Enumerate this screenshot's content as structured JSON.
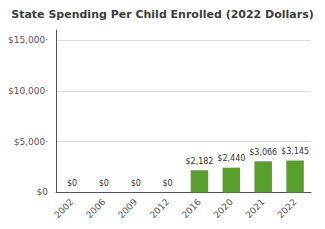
{
  "chart_data": {
    "type": "bar",
    "title": "State Spending Per Child Enrolled (2022 Dollars)",
    "categories": [
      "2002",
      "2006",
      "2009",
      "2012",
      "2016",
      "2020",
      "2021",
      "2022"
    ],
    "values": [
      0,
      0,
      0,
      0,
      2182,
      2440,
      3066,
      3145
    ],
    "value_labels": [
      "$0",
      "$0",
      "$0",
      "$0",
      "$2,182",
      "$2,440",
      "$3,066",
      "$3,145"
    ],
    "data_labels": true,
    "color": "#5a9e2f",
    "ylim": [
      0,
      16000
    ],
    "yticks": [
      {
        "value": 0,
        "label": "$0"
      },
      {
        "value": 5000,
        "label": "$5,000·"
      },
      {
        "value": 10000,
        "label": "$10,000·"
      },
      {
        "value": 15000,
        "label": "$15,000·"
      }
    ],
    "grid": true
  }
}
